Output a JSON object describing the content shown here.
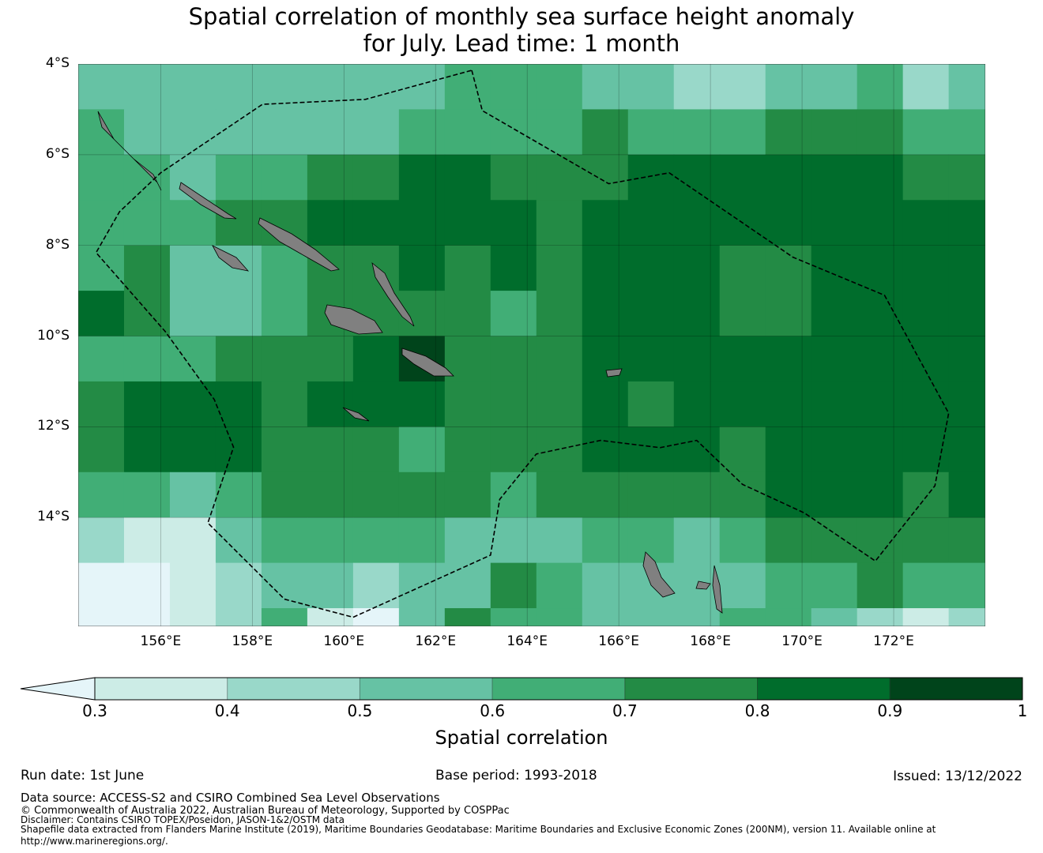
{
  "title_line1": "Spatial correlation of monthly sea surface height anomaly",
  "title_line2": "for July. Lead time: 1 month",
  "chart_data": {
    "type": "heatmap",
    "title": "Spatial correlation of monthly sea surface height anomaly for July. Lead time: 1 month",
    "lon_range": [
      154.2,
      174.0
    ],
    "lat_range": [
      -4.0,
      -16.4
    ],
    "cell_deg": 1,
    "x_ticks": [
      "156°E",
      "158°E",
      "160°E",
      "162°E",
      "164°E",
      "166°E",
      "168°E",
      "170°E",
      "172°E"
    ],
    "x_tick_values": [
      156,
      158,
      160,
      162,
      164,
      166,
      168,
      170,
      172
    ],
    "y_ticks": [
      "4°S",
      "6°S",
      "8°S",
      "10°S",
      "12°S",
      "14°S"
    ],
    "y_tick_values": [
      -4,
      -6,
      -8,
      -10,
      -12,
      -14
    ],
    "grid": true,
    "values": [
      [
        0.55,
        0.55,
        0.55,
        0.55,
        0.55,
        0.55,
        0.55,
        0.55,
        0.65,
        0.65,
        0.65,
        0.55,
        0.55,
        0.45,
        0.45,
        0.55,
        0.55,
        0.65,
        0.45,
        0.55
      ],
      [
        0.65,
        0.55,
        0.55,
        0.55,
        0.55,
        0.55,
        0.55,
        0.65,
        0.65,
        0.65,
        0.65,
        0.75,
        0.65,
        0.65,
        0.65,
        0.75,
        0.75,
        0.75,
        0.65,
        0.65
      ],
      [
        0.65,
        0.65,
        0.55,
        0.65,
        0.65,
        0.75,
        0.75,
        0.85,
        0.85,
        0.75,
        0.75,
        0.75,
        0.85,
        0.85,
        0.85,
        0.85,
        0.85,
        0.85,
        0.75,
        0.75
      ],
      [
        0.65,
        0.65,
        0.65,
        0.75,
        0.75,
        0.85,
        0.85,
        0.85,
        0.85,
        0.85,
        0.75,
        0.85,
        0.85,
        0.85,
        0.85,
        0.85,
        0.85,
        0.85,
        0.85,
        0.85
      ],
      [
        0.65,
        0.75,
        0.55,
        0.55,
        0.65,
        0.75,
        0.75,
        0.85,
        0.75,
        0.85,
        0.75,
        0.85,
        0.85,
        0.85,
        0.75,
        0.75,
        0.85,
        0.85,
        0.85,
        0.85
      ],
      [
        0.85,
        0.75,
        0.55,
        0.55,
        0.65,
        0.75,
        0.75,
        0.75,
        0.75,
        0.65,
        0.75,
        0.85,
        0.85,
        0.85,
        0.75,
        0.75,
        0.85,
        0.85,
        0.85,
        0.85
      ],
      [
        0.65,
        0.65,
        0.65,
        0.75,
        0.75,
        0.75,
        0.85,
        0.95,
        0.75,
        0.75,
        0.75,
        0.85,
        0.85,
        0.85,
        0.85,
        0.85,
        0.85,
        0.85,
        0.85,
        0.85
      ],
      [
        0.75,
        0.85,
        0.85,
        0.85,
        0.75,
        0.85,
        0.85,
        0.85,
        0.75,
        0.75,
        0.75,
        0.85,
        0.75,
        0.85,
        0.85,
        0.85,
        0.85,
        0.85,
        0.85,
        0.85
      ],
      [
        0.75,
        0.85,
        0.85,
        0.85,
        0.75,
        0.75,
        0.75,
        0.65,
        0.75,
        0.75,
        0.75,
        0.85,
        0.85,
        0.85,
        0.75,
        0.85,
        0.85,
        0.85,
        0.85,
        0.85
      ],
      [
        0.65,
        0.65,
        0.55,
        0.65,
        0.75,
        0.75,
        0.75,
        0.75,
        0.75,
        0.65,
        0.75,
        0.75,
        0.75,
        0.75,
        0.75,
        0.85,
        0.85,
        0.85,
        0.75,
        0.85
      ],
      [
        0.45,
        0.35,
        0.35,
        0.55,
        0.65,
        0.65,
        0.65,
        0.65,
        0.55,
        0.55,
        0.55,
        0.65,
        0.65,
        0.55,
        0.65,
        0.75,
        0.75,
        0.75,
        0.75,
        0.75
      ],
      [
        0.25,
        0.25,
        0.35,
        0.45,
        0.55,
        0.55,
        0.45,
        0.55,
        0.55,
        0.75,
        0.65,
        0.55,
        0.55,
        0.55,
        0.55,
        0.65,
        0.65,
        0.75,
        0.65,
        0.65
      ],
      [
        0.25,
        0.25,
        0.35,
        0.45,
        0.65,
        0.35,
        0.25,
        0.55,
        0.75,
        0.65,
        0.65,
        0.55,
        0.55,
        0.55,
        0.65,
        0.65,
        0.55,
        0.45,
        0.35,
        0.45
      ]
    ],
    "boundary": [
      [
        162.79,
        -4.14
      ],
      [
        163.02,
        -5.03
      ],
      [
        165.78,
        -6.64
      ],
      [
        167.1,
        -6.4
      ],
      [
        169.8,
        -8.26
      ],
      [
        171.8,
        -9.1
      ],
      [
        173.2,
        -11.7
      ],
      [
        172.9,
        -13.3
      ],
      [
        171.6,
        -14.96
      ],
      [
        170.05,
        -13.9
      ],
      [
        168.7,
        -13.27
      ],
      [
        167.7,
        -12.3
      ],
      [
        166.9,
        -12.46
      ],
      [
        165.6,
        -12.3
      ],
      [
        164.2,
        -12.6
      ],
      [
        163.4,
        -13.6
      ],
      [
        163.2,
        -14.83
      ],
      [
        160.2,
        -16.2
      ],
      [
        158.7,
        -15.8
      ],
      [
        157.03,
        -14.12
      ],
      [
        157.59,
        -12.45
      ],
      [
        157.17,
        -11.4
      ],
      [
        156.1,
        -9.9
      ],
      [
        154.59,
        -8.16
      ],
      [
        155.1,
        -7.26
      ],
      [
        156.0,
        -6.4
      ],
      [
        158.22,
        -4.89
      ],
      [
        160.47,
        -4.78
      ],
      [
        162.79,
        -4.14
      ]
    ],
    "colorbar": {
      "label": "Spatial correlation",
      "ticks": [
        "0.3",
        "0.4",
        "0.5",
        "0.6",
        "0.7",
        "0.8",
        "0.9",
        "1"
      ],
      "bounds": [
        0.3,
        0.4,
        0.5,
        0.6,
        0.7,
        0.8,
        0.9,
        1.0
      ],
      "under_color": "#e5f5f9",
      "colors": [
        "#ccece6",
        "#99d8c9",
        "#66c2a4",
        "#41ae76",
        "#238b45",
        "#006d2c",
        "#00441b"
      ]
    }
  },
  "footer": {
    "run_date": "Run date: 1st June",
    "base_period": "Base period: 1993-2018",
    "issued": "Issued: 13/12/2022",
    "data_source": "Data source: ACCESS-S2 and CSIRO Combined Sea Level Observations",
    "copyright": "© Commonwealth of Australia 2022, Australian Bureau of Meteorology, Supported by COSPPac",
    "disclaimer": "Disclaimer: Contains CSIRO TOPEX/Poseidon, JASON-1&2/OSTM data",
    "shapefile": "Shapefile data extracted from Flanders Marine Institute (2019), Maritime Boundaries Geodatabase: Maritime Boundaries and Exclusive Economic Zones (200NM), version 11. Available online at",
    "url": "http://www.marineregions.org/."
  }
}
